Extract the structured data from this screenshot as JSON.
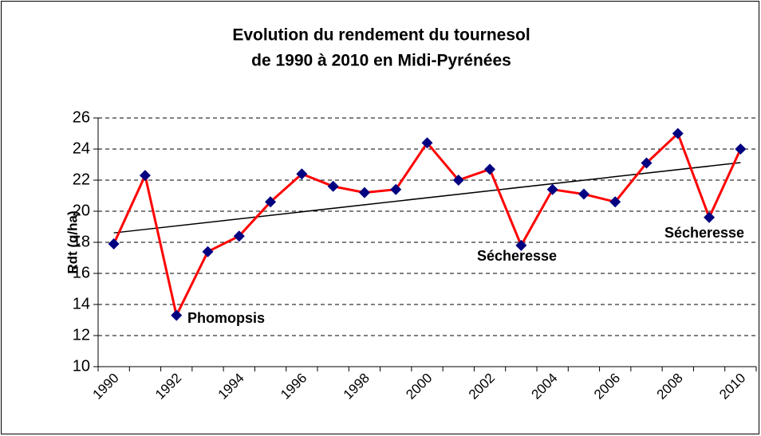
{
  "chart_data": {
    "type": "line",
    "title": [
      "Evolution du rendement du tournesol",
      "de 1990 à 2010 en Midi-Pyrénées"
    ],
    "ylabel": "Rdt (q/ha)",
    "categories": [
      "1990",
      null,
      "1992",
      null,
      "1994",
      null,
      "1996",
      null,
      "1998",
      null,
      "2000",
      null,
      "2002",
      null,
      "2004",
      null,
      "2006",
      null,
      "2008",
      null,
      "2010"
    ],
    "series": [
      {
        "name": "Rdt",
        "color": "#ff0000",
        "marker_color": "#000080",
        "values": [
          17.9,
          22.3,
          13.3,
          17.4,
          18.4,
          20.6,
          22.4,
          21.6,
          21.2,
          21.4,
          24.4,
          22.0,
          22.7,
          17.8,
          21.4,
          21.1,
          20.6,
          23.1,
          25.0,
          19.6,
          24.0
        ]
      }
    ],
    "trendline": "linear",
    "ylim": [
      10,
      26
    ],
    "yticks": [
      10,
      12,
      14,
      16,
      18,
      20,
      22,
      24,
      26
    ],
    "grid": true,
    "annotations": [
      {
        "text": "Phomopsis"
      },
      {
        "text": "Sécheresse"
      },
      {
        "text": "Sécheresse"
      }
    ]
  }
}
